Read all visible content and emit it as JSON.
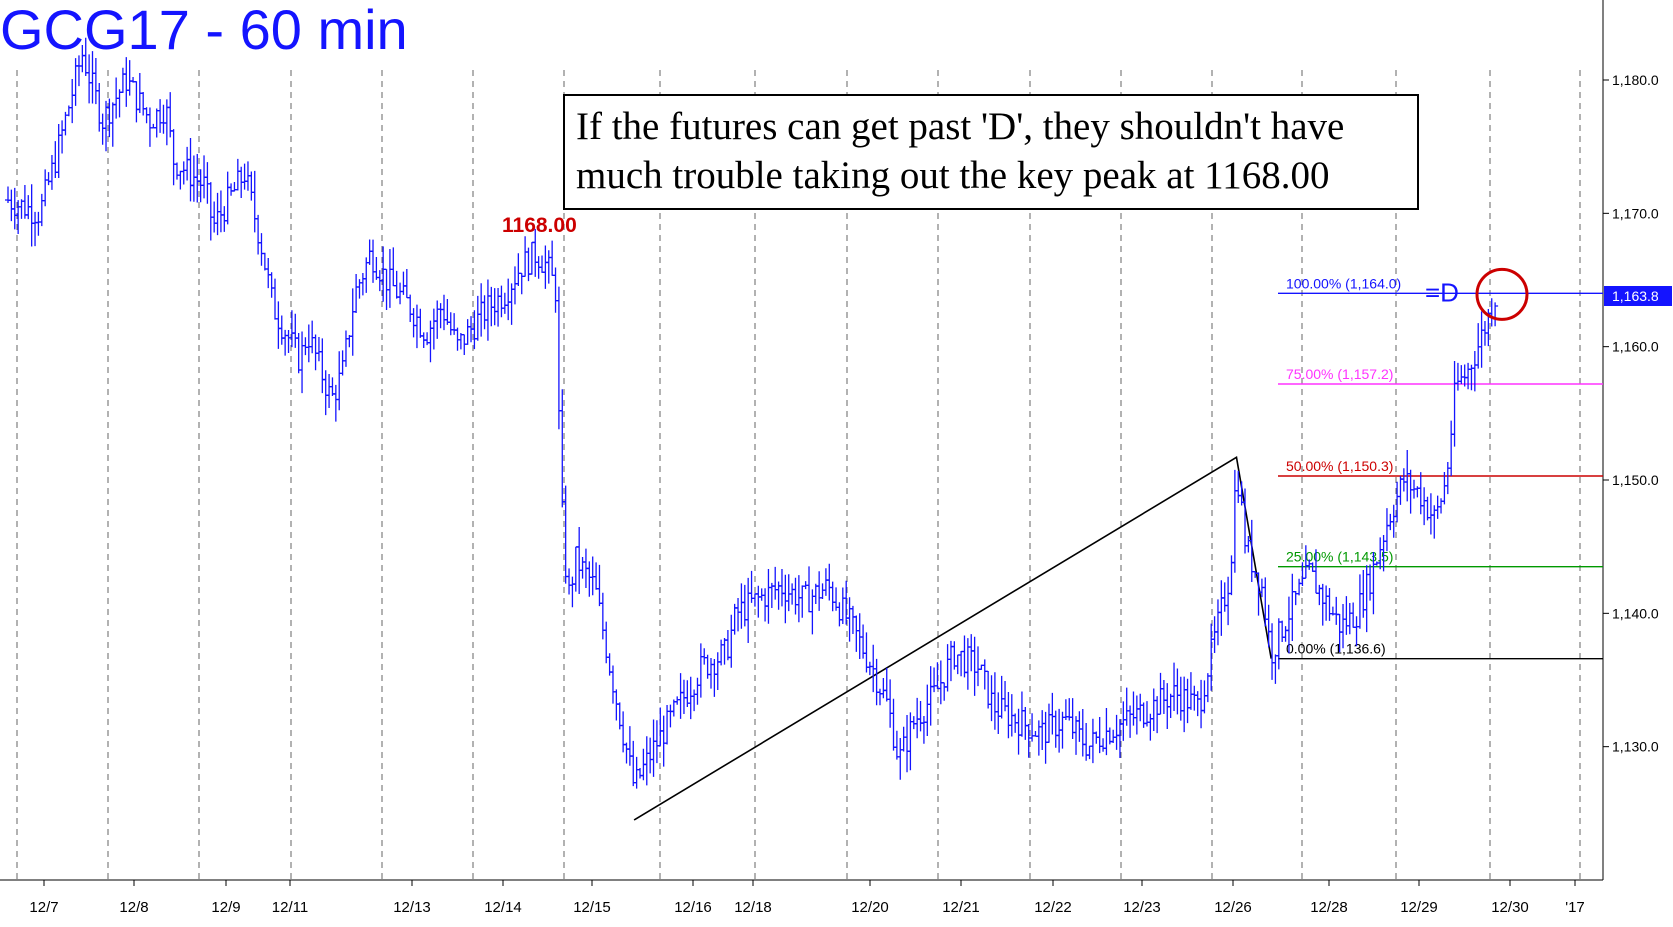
{
  "chart_data": {
    "type": "bar",
    "subtype": "ohlc-price-chart",
    "title": "GCG17 - 60 min",
    "annotation_box": {
      "line1": "If the futures can get past 'D', they shouldn't have",
      "line2": "much trouble taking out the key peak at 1168.00"
    },
    "peak_label": "1168.00",
    "x_ticks": [
      "12/7",
      "12/8",
      "12/9",
      "12/11",
      "12/13",
      "12/14",
      "12/15",
      "12/16",
      "12/18",
      "12/20",
      "12/21",
      "12/22",
      "12/23",
      "12/26",
      "12/28",
      "12/29",
      "12/30",
      "'17"
    ],
    "y_ticks": [
      "1,130.0",
      "1,140.0",
      "1,150.0",
      "1,160.0",
      "1,170.0",
      "1,180.0"
    ],
    "y_tick_values": [
      1130,
      1140,
      1150,
      1160,
      1170,
      1180
    ],
    "ylim": [
      1120.0,
      1186.0
    ],
    "last_price_label": "1,163.8",
    "last_price": 1163.8,
    "d_label": "=D",
    "fib_levels": [
      {
        "label": "100.00% (1,164.0)",
        "value": 1164.0,
        "color": "#1414ff"
      },
      {
        "label": "75.00% (1,157.2)",
        "value": 1157.2,
        "color": "#ff33ff"
      },
      {
        "label": "50.00% (1,150.3)",
        "value": 1150.3,
        "color": "#cc0000"
      },
      {
        "label": "25.00% (1,143.5)",
        "value": 1143.5,
        "color": "#009900"
      },
      {
        "label": "0.00% (1,136.6)",
        "value": 1136.6,
        "color": "#000000"
      }
    ],
    "abc_pattern": [
      {
        "t": 0.397,
        "value": 1124.5
      },
      {
        "t": 0.779,
        "value": 1151.7
      },
      {
        "t": 0.801,
        "value": 1136.6
      }
    ],
    "price_path": [
      [
        0.0,
        1171
      ],
      [
        0.02,
        1170
      ],
      [
        0.03,
        1174
      ],
      [
        0.047,
        1182
      ],
      [
        0.06,
        1177
      ],
      [
        0.075,
        1180
      ],
      [
        0.09,
        1177
      ],
      [
        0.1,
        1178
      ],
      [
        0.105,
        1174
      ],
      [
        0.125,
        1172
      ],
      [
        0.13,
        1169
      ],
      [
        0.145,
        1172
      ],
      [
        0.15,
        1173
      ],
      [
        0.16,
        1168
      ],
      [
        0.168,
        1163
      ],
      [
        0.185,
        1159
      ],
      [
        0.19,
        1161
      ],
      [
        0.205,
        1156
      ],
      [
        0.212,
        1158
      ],
      [
        0.22,
        1164
      ],
      [
        0.23,
        1167
      ],
      [
        0.24,
        1165
      ],
      [
        0.255,
        1163
      ],
      [
        0.265,
        1161
      ],
      [
        0.275,
        1163
      ],
      [
        0.285,
        1160
      ],
      [
        0.298,
        1162
      ],
      [
        0.305,
        1163
      ],
      [
        0.315,
        1164
      ],
      [
        0.325,
        1166
      ],
      [
        0.335,
        1167
      ],
      [
        0.342,
        1166
      ],
      [
        0.348,
        1164
      ],
      [
        0.35,
        1150
      ],
      [
        0.355,
        1141
      ],
      [
        0.36,
        1144
      ],
      [
        0.372,
        1142
      ],
      [
        0.385,
        1134
      ],
      [
        0.397,
        1127
      ],
      [
        0.41,
        1130
      ],
      [
        0.425,
        1133
      ],
      [
        0.44,
        1136
      ],
      [
        0.455,
        1137
      ],
      [
        0.462,
        1140
      ],
      [
        0.475,
        1141
      ],
      [
        0.49,
        1142
      ],
      [
        0.505,
        1141
      ],
      [
        0.52,
        1142
      ],
      [
        0.535,
        1139
      ],
      [
        0.548,
        1136
      ],
      [
        0.558,
        1133
      ],
      [
        0.565,
        1129
      ],
      [
        0.575,
        1132
      ],
      [
        0.588,
        1134
      ],
      [
        0.6,
        1137
      ],
      [
        0.615,
        1136
      ],
      [
        0.625,
        1133
      ],
      [
        0.64,
        1132
      ],
      [
        0.655,
        1131
      ],
      [
        0.67,
        1132
      ],
      [
        0.685,
        1130
      ],
      [
        0.695,
        1131
      ],
      [
        0.71,
        1132
      ],
      [
        0.725,
        1133
      ],
      [
        0.74,
        1134
      ],
      [
        0.755,
        1133
      ],
      [
        0.765,
        1138
      ],
      [
        0.775,
        1143
      ],
      [
        0.779,
        1151
      ],
      [
        0.785,
        1145
      ],
      [
        0.795,
        1142
      ],
      [
        0.801,
        1137
      ],
      [
        0.812,
        1140
      ],
      [
        0.825,
        1143
      ],
      [
        0.835,
        1141
      ],
      [
        0.845,
        1139
      ],
      [
        0.855,
        1140
      ],
      [
        0.865,
        1143
      ],
      [
        0.875,
        1147
      ],
      [
        0.885,
        1150
      ],
      [
        0.895,
        1149
      ],
      [
        0.905,
        1147
      ],
      [
        0.912,
        1150
      ],
      [
        0.918,
        1157
      ],
      [
        0.925,
        1158
      ],
      [
        0.932,
        1160
      ],
      [
        0.938,
        1162
      ],
      [
        0.943,
        1163.8
      ]
    ]
  }
}
